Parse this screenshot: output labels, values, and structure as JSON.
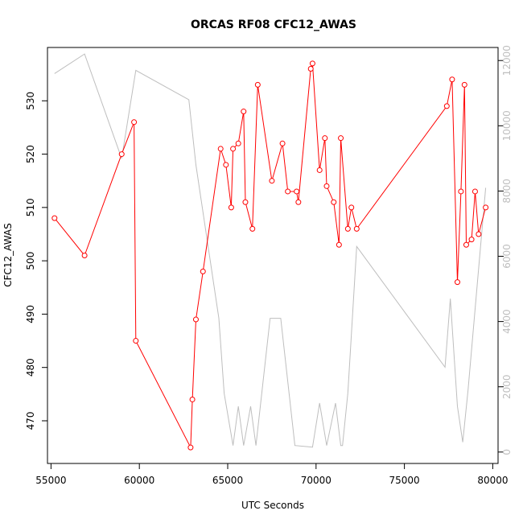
{
  "chart_data": {
    "type": "line",
    "title": "ORCAS RF08 CFC12_AWAS",
    "xlabel": "UTC Seconds",
    "ylabel": "CFC12_AWAS",
    "xlim": [
      54800,
      80300
    ],
    "ylim": [
      462,
      540
    ],
    "y2lim": [
      -350,
      12400
    ],
    "x_ticks": [
      55000,
      60000,
      65000,
      70000,
      75000,
      80000
    ],
    "x_tick_labels": [
      "55000",
      "60000",
      "65000",
      "70000",
      "75000",
      "80000"
    ],
    "y_ticks": [
      470,
      480,
      490,
      500,
      510,
      520,
      530
    ],
    "y_tick_labels": [
      "470",
      "480",
      "490",
      "500",
      "510",
      "520",
      "530"
    ],
    "y2_ticks": [
      0,
      2000,
      4000,
      6000,
      8000,
      10000,
      12000
    ],
    "y2_tick_labels": [
      "0",
      "2000",
      "4000",
      "6000",
      "8000",
      "10000",
      "12000"
    ],
    "colors": {
      "primary": "#ff0000",
      "secondary": "#bebebe",
      "axis": "#000000"
    },
    "grid": false,
    "series": [
      {
        "axis": "left",
        "style": "line+points",
        "color": "#ff0000",
        "x": [
          55200,
          56900,
          59000,
          59700,
          59800,
          62900,
          63000,
          63200,
          63600,
          64600,
          64900,
          65200,
          65300,
          65600,
          65900,
          66000,
          66400,
          66700,
          67500,
          68100,
          68400,
          68900,
          69000,
          69700,
          69800,
          70200,
          70500,
          70600,
          71000,
          71300,
          71400,
          71800,
          72000,
          72300,
          77400,
          77700,
          78000,
          78200,
          78400,
          78500,
          78800,
          79000,
          79200,
          79600
        ],
        "y": [
          508,
          501,
          520,
          526,
          485,
          465,
          474,
          489,
          498,
          521,
          518,
          510,
          521,
          522,
          528,
          511,
          506,
          533,
          515,
          522,
          513,
          513,
          511,
          536,
          537,
          517,
          523,
          514,
          511,
          503,
          523,
          506,
          510,
          506,
          529,
          534,
          496,
          513,
          533,
          503,
          504,
          513,
          505,
          510
        ]
      },
      {
        "axis": "right",
        "style": "line",
        "color": "#bebebe",
        "x": [
          55200,
          56900,
          59000,
          59800,
          62800,
          63200,
          64500,
          64800,
          65300,
          65600,
          65900,
          66300,
          66600,
          67400,
          68000,
          68800,
          69800,
          70200,
          70600,
          71100,
          71400,
          71500,
          71800,
          72300,
          77300,
          77600,
          78000,
          78300,
          78600,
          79600
        ],
        "y": [
          11600,
          12200,
          9000,
          11700,
          10800,
          8800,
          4100,
          1800,
          200,
          1400,
          200,
          1400,
          200,
          4100,
          4100,
          200,
          150,
          1500,
          200,
          1500,
          200,
          200,
          1800,
          6300,
          2600,
          4700,
          1400,
          300,
          1900,
          8100
        ]
      }
    ]
  }
}
